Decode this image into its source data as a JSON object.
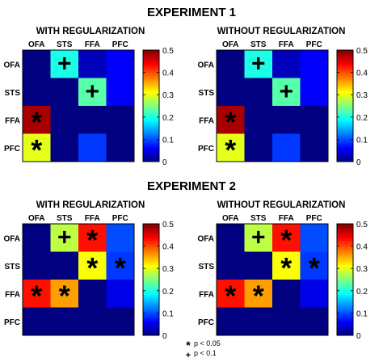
{
  "chart_data": [
    {
      "type": "heatmap",
      "experiment": "EXPERIMENT 1",
      "title": "WITH REGULARIZATION",
      "rows": [
        "OFA",
        "STS",
        "FFA",
        "PFC"
      ],
      "columns": [
        "OFA",
        "STS",
        "FFA",
        "PFC"
      ],
      "values": [
        [
          0.0,
          0.2,
          0.03,
          0.06
        ],
        [
          0.0,
          0.0,
          0.23,
          0.06
        ],
        [
          0.48,
          0.0,
          0.0,
          0.0
        ],
        [
          0.3,
          0.0,
          0.09,
          0.0
        ]
      ],
      "significance": [
        [
          "",
          "+",
          "",
          ""
        ],
        [
          "",
          "",
          "+",
          ""
        ],
        [
          "*",
          "",
          "",
          ""
        ],
        [
          "*",
          "",
          "",
          ""
        ]
      ],
      "colorbar": {
        "colormap": "jet",
        "range": [
          0,
          0.5
        ],
        "ticks": [
          "0",
          "0.1",
          "0.2",
          "0.3",
          "0.4",
          "0.5"
        ]
      }
    },
    {
      "type": "heatmap",
      "experiment": "EXPERIMENT 1",
      "title": "WITHOUT REGULARIZATION",
      "rows": [
        "OFA",
        "STS",
        "FFA",
        "PFC"
      ],
      "columns": [
        "OFA",
        "STS",
        "FFA",
        "PFC"
      ],
      "values": [
        [
          0.0,
          0.2,
          0.03,
          0.06
        ],
        [
          0.0,
          0.0,
          0.23,
          0.06
        ],
        [
          0.48,
          0.0,
          0.0,
          0.0
        ],
        [
          0.3,
          0.0,
          0.09,
          0.0
        ]
      ],
      "significance": [
        [
          "",
          "+",
          "",
          ""
        ],
        [
          "",
          "",
          "+",
          ""
        ],
        [
          "*",
          "",
          "",
          ""
        ],
        [
          "*",
          "",
          "",
          ""
        ]
      ],
      "colorbar": {
        "colormap": "jet",
        "range": [
          0,
          0.5
        ],
        "ticks": [
          "0",
          "0.1",
          "0.2",
          "0.3",
          "0.4",
          "0.5"
        ]
      }
    },
    {
      "type": "heatmap",
      "experiment": "EXPERIMENT 2",
      "title": "WITH REGULARIZATION",
      "rows": [
        "OFA",
        "STS",
        "FFA",
        "PFC"
      ],
      "columns": [
        "OFA",
        "STS",
        "FFA",
        "PFC"
      ],
      "values": [
        [
          0.0,
          0.28,
          0.43,
          0.1
        ],
        [
          0.0,
          0.0,
          0.31,
          0.09
        ],
        [
          0.43,
          0.36,
          0.0,
          0.05
        ],
        [
          0.0,
          0.0,
          0.0,
          0.0
        ]
      ],
      "significance": [
        [
          "",
          "+",
          "*",
          ""
        ],
        [
          "",
          "",
          "*",
          "*"
        ],
        [
          "*",
          "*",
          "",
          ""
        ],
        [
          "",
          "",
          "",
          ""
        ]
      ],
      "colorbar": {
        "colormap": "jet",
        "range": [
          0,
          0.5
        ],
        "ticks": [
          "0",
          "0.1",
          "0.2",
          "0.3",
          "0.4",
          "0.5"
        ]
      }
    },
    {
      "type": "heatmap",
      "experiment": "EXPERIMENT 2",
      "title": "WITHOUT REGULARIZATION",
      "rows": [
        "OFA",
        "STS",
        "FFA",
        "PFC"
      ],
      "columns": [
        "OFA",
        "STS",
        "FFA",
        "PFC"
      ],
      "values": [
        [
          0.0,
          0.28,
          0.43,
          0.1
        ],
        [
          0.0,
          0.0,
          0.31,
          0.09
        ],
        [
          0.43,
          0.36,
          0.0,
          0.05
        ],
        [
          0.0,
          0.0,
          0.0,
          0.0
        ]
      ],
      "significance": [
        [
          "",
          "+",
          "*",
          ""
        ],
        [
          "",
          "",
          "*",
          "*"
        ],
        [
          "*",
          "*",
          "",
          ""
        ],
        [
          "",
          "",
          "",
          ""
        ]
      ],
      "colorbar": {
        "colormap": "jet",
        "range": [
          0,
          0.5
        ],
        "ticks": [
          "0",
          "0.1",
          "0.2",
          "0.3",
          "0.4",
          "0.5"
        ]
      }
    }
  ],
  "experiments": [
    "EXPERIMENT 1",
    "EXPERIMENT 2"
  ],
  "legend": {
    "star": {
      "symbol": "*",
      "label": "p < 0.05"
    },
    "plus": {
      "symbol": "+",
      "label": "p < 0.1"
    }
  }
}
